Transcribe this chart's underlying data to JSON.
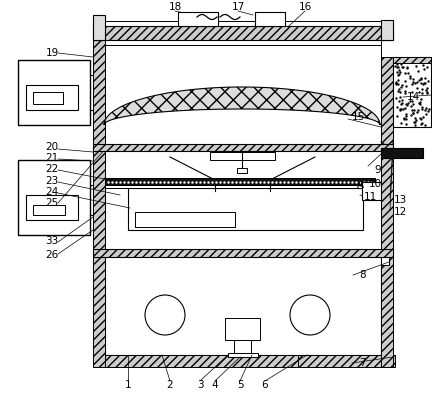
{
  "bg_color": "#ffffff",
  "line_color": "#000000",
  "hatch_gray": "#bbbbbb",
  "hatch_dark": "#888888",
  "label_fs": 7.5,
  "label_color": "#000000"
}
